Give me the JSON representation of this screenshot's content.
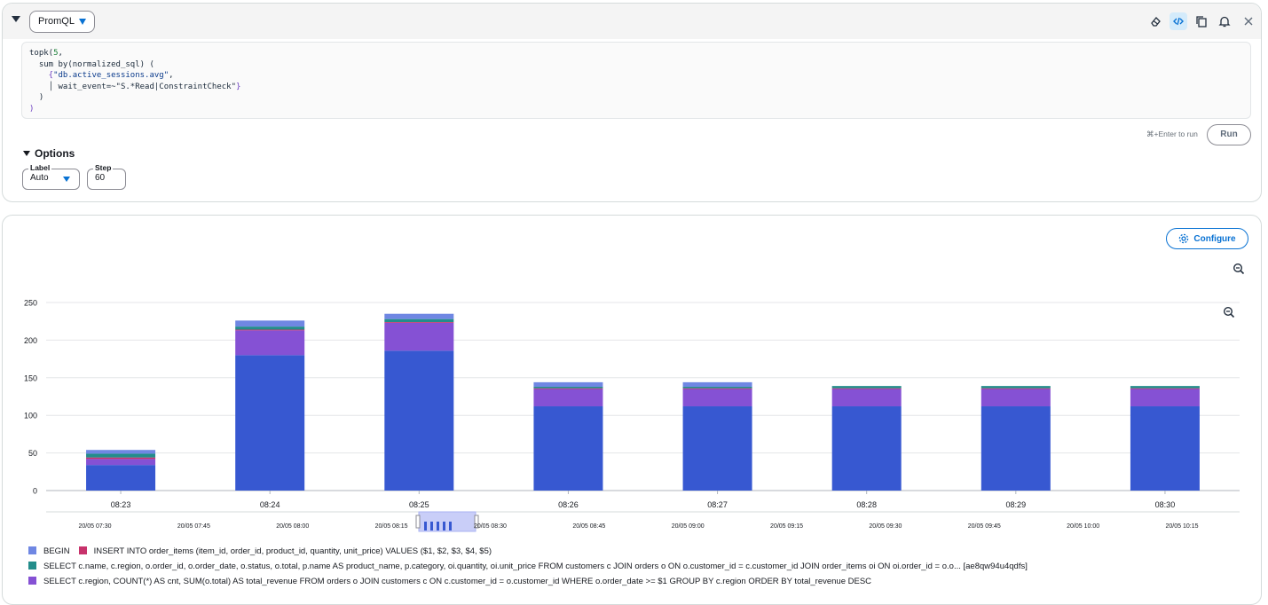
{
  "query_panel": {
    "language": "PromQL",
    "code_lines": [
      [
        {
          "t": "topk(",
          "c": ""
        },
        {
          "t": "5",
          "c": "num"
        },
        {
          "t": ",",
          "c": ""
        }
      ],
      [
        {
          "t": "  sum by(normalized_sql) (",
          "c": ""
        }
      ],
      [
        {
          "t": "    {",
          "c": "brk"
        },
        {
          "t": "\"db.active_sessions.avg\"",
          "c": "str"
        },
        {
          "t": ",",
          "c": ""
        }
      ],
      [
        {
          "t": "    │ wait_event=~\"S.*Read|ConstraintCheck\"",
          "c": ""
        },
        {
          "t": "}",
          "c": "brk"
        }
      ],
      [
        {
          "t": "  )",
          "c": ""
        }
      ],
      [
        {
          "t": ")",
          "c": "brk"
        }
      ]
    ],
    "run_hint": "⌘+Enter to run",
    "run_label": "Run",
    "options_title": "Options",
    "label_field": {
      "label": "Label",
      "value": "Auto"
    },
    "step_field": {
      "label": "Step",
      "value": "60"
    }
  },
  "toolbar_icons": [
    "eraser-icon",
    "code-view-icon",
    "copy-icon",
    "bell-icon",
    "close-icon"
  ],
  "chart_panel": {
    "configure_label": "Configure"
  },
  "chart_data": {
    "type": "bar",
    "stacked": true,
    "categories": [
      "08:23",
      "08:24",
      "08:25",
      "08:26",
      "08:27",
      "08:28",
      "08:29",
      "08:30"
    ],
    "ylim": [
      0,
      250
    ],
    "yticks": [
      0,
      50,
      100,
      150,
      200,
      250
    ],
    "grid": true,
    "series": [
      {
        "name": "SELECT c.region, COUNT(*) AS cnt, SUM(o.total) AS total_revenue FROM orders o JOIN customers c ON c.customer_id = o.customer_id WHERE o.order_date >= $1 GROUP BY c.region ORDER BY total_revenue DESC",
        "color": "#3758d1",
        "values": [
          34,
          180,
          186,
          112,
          112,
          112,
          112,
          112
        ]
      },
      {
        "name": "SELECT c.region, COUNT(*) AS cnt, SUM(o.total) AS total_revenue FROM orders o JOIN customers c ON c.customer_id = o.customer_id WHERE o.order_date >= $1 GROUP BY c.region ORDER BY total_revenue DESC",
        "color": "#8551d4",
        "values": [
          8,
          33,
          37,
          23,
          23,
          23,
          23,
          23
        ]
      },
      {
        "name": "INSERT INTO order_items (item_id, order_id, product_id, quantity, unit_price) VALUES ($1, $2, $3, $4, $5)",
        "color": "#c7326b",
        "values": [
          2,
          1,
          1,
          1,
          1,
          1,
          1,
          1
        ]
      },
      {
        "name": "SELECT c.name, c.region, o.order_id, o.order_date, o.status, o.total, p.name AS product_name, p.category, oi.quantity, oi.unit_price FROM customers c JOIN orders o ON o.customer_id = c.customer_id JOIN order_items oi ON oi.order_id = o.o... [ae8qw94u4qdfs]",
        "color": "#238d8b",
        "values": [
          5,
          4,
          4,
          2,
          2,
          3,
          3,
          3
        ]
      },
      {
        "name": "BEGIN",
        "color": "#6f87e3",
        "values": [
          5,
          8,
          7,
          6,
          6,
          0,
          0,
          0
        ]
      }
    ],
    "navigator": {
      "tick_labels": [
        "20/05 07:30",
        "20/05 07:45",
        "20/05 08:00",
        "20/05 08:15",
        "20/05 08:30",
        "20/05 08:45",
        "20/05 09:00",
        "20/05 09:15",
        "20/05 09:30",
        "20/05 09:45",
        "20/05 10:00",
        "20/05 10:15"
      ],
      "selected_tick_label": "20/05 08:30",
      "window_color": "#c9cef8"
    }
  },
  "legend": [
    [
      {
        "name": "BEGIN",
        "color": "#6f87e3"
      },
      {
        "name": "INSERT INTO order_items (item_id, order_id, product_id, quantity, unit_price) VALUES ($1, $2, $3, $4, $5)",
        "color": "#c7326b"
      }
    ],
    [
      {
        "name": "SELECT c.name, c.region, o.order_id, o.order_date, o.status, o.total, p.name AS product_name, p.category, oi.quantity, oi.unit_price FROM customers c JOIN orders o ON o.customer_id = c.customer_id JOIN order_items oi ON oi.order_id = o.o... [ae8qw94u4qdfs]",
        "color": "#238d8b"
      }
    ],
    [
      {
        "name": "SELECT c.region, COUNT(*) AS cnt, SUM(o.total) AS total_revenue FROM orders o JOIN customers c ON c.customer_id = o.customer_id WHERE o.order_date >= $1 GROUP BY c.region ORDER BY total_revenue DESC",
        "color": "#8551d4"
      }
    ]
  ]
}
